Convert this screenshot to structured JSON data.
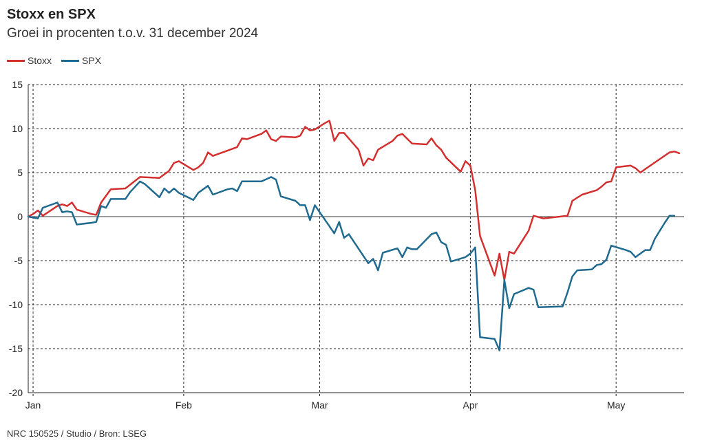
{
  "header": {
    "title": "Stoxx en SPX",
    "subtitle": "Groei in procenten t.o.v. 31 december 2024"
  },
  "footer": {
    "source": "NRC 150525 / Studio / Bron: LSEG"
  },
  "chart_data": {
    "type": "line",
    "title": "Stoxx en SPX",
    "subtitle": "Groei in procenten t.o.v. 31 december 2024",
    "xlabel": "",
    "ylabel": "",
    "ylim": [
      -20,
      15
    ],
    "yticks": [
      15,
      10,
      5,
      0,
      -5,
      -10,
      -15,
      -20
    ],
    "xlim": [
      -1,
      134
    ],
    "xticks": [
      {
        "label": "Jan",
        "x": 0
      },
      {
        "label": "Feb",
        "x": 31
      },
      {
        "label": "Mar",
        "x": 59
      },
      {
        "label": "Apr",
        "x": 90
      },
      {
        "label": "May",
        "x": 120
      }
    ],
    "grid": true,
    "legend_position": "top-left",
    "series": [
      {
        "name": "Stoxx",
        "color": "#d32f2f",
        "points": [
          [
            -1,
            0
          ],
          [
            0,
            0.3
          ],
          [
            1,
            0.7
          ],
          [
            2,
            0.1
          ],
          [
            5,
            1.2
          ],
          [
            6,
            1.4
          ],
          [
            7,
            1.2
          ],
          [
            8,
            1.6
          ],
          [
            9,
            0.8
          ],
          [
            12,
            0.3
          ],
          [
            13,
            0.2
          ],
          [
            14,
            1.6
          ],
          [
            16,
            3.1
          ],
          [
            19,
            3.2
          ],
          [
            22,
            4.5
          ],
          [
            26,
            4.4
          ],
          [
            28,
            5.2
          ],
          [
            29,
            6.1
          ],
          [
            30,
            6.3
          ],
          [
            33,
            5.3
          ],
          [
            34,
            5.6
          ],
          [
            35,
            6.1
          ],
          [
            36,
            7.3
          ],
          [
            37,
            6.9
          ],
          [
            42,
            7.9
          ],
          [
            43,
            8.9
          ],
          [
            44,
            8.8
          ],
          [
            47,
            9.4
          ],
          [
            48,
            9.8
          ],
          [
            49,
            8.8
          ],
          [
            50,
            8.6
          ],
          [
            51,
            9.1
          ],
          [
            54,
            9.0
          ],
          [
            55,
            9.2
          ],
          [
            56,
            10.2
          ],
          [
            57,
            9.8
          ],
          [
            58,
            9.9
          ],
          [
            60,
            10.6
          ],
          [
            61,
            10.9
          ],
          [
            62,
            8.6
          ],
          [
            63,
            9.5
          ],
          [
            64,
            9.5
          ],
          [
            67,
            7.6
          ],
          [
            68,
            5.8
          ],
          [
            69,
            6.6
          ],
          [
            70,
            6.4
          ],
          [
            71,
            7.6
          ],
          [
            74,
            8.6
          ],
          [
            75,
            9.2
          ],
          [
            76,
            9.4
          ],
          [
            78,
            8.3
          ],
          [
            81,
            8.2
          ],
          [
            82,
            8.9
          ],
          [
            83,
            8.1
          ],
          [
            84,
            7.6
          ],
          [
            85,
            6.7
          ],
          [
            88,
            5.1
          ],
          [
            89,
            6.3
          ],
          [
            90,
            5.8
          ],
          [
            91,
            3.0
          ],
          [
            92,
            -2.2
          ],
          [
            95,
            -6.7
          ],
          [
            96,
            -4.2
          ],
          [
            97,
            -7.2
          ],
          [
            98,
            -4.0
          ],
          [
            99,
            -4.2
          ],
          [
            102,
            -1.6
          ],
          [
            103,
            0.1
          ],
          [
            105,
            -0.2
          ],
          [
            110,
            0.1
          ],
          [
            111,
            1.8
          ],
          [
            113,
            2.5
          ],
          [
            116,
            3.0
          ],
          [
            117,
            3.4
          ],
          [
            118,
            3.9
          ],
          [
            119,
            4.0
          ],
          [
            120,
            5.6
          ],
          [
            123,
            5.8
          ],
          [
            124,
            5.5
          ],
          [
            125,
            5.0
          ],
          [
            126,
            5.4
          ],
          [
            131,
            7.3
          ],
          [
            132,
            7.4
          ],
          [
            133,
            7.2
          ]
        ]
      },
      {
        "name": "SPX",
        "color": "#1f6a8f",
        "points": [
          [
            -1,
            0
          ],
          [
            1,
            -0.2
          ],
          [
            2,
            1.0
          ],
          [
            5,
            1.6
          ],
          [
            6,
            0.5
          ],
          [
            7,
            0.6
          ],
          [
            8,
            0.5
          ],
          [
            9,
            -0.9
          ],
          [
            12,
            -0.7
          ],
          [
            13,
            -0.6
          ],
          [
            14,
            1.2
          ],
          [
            15,
            1.0
          ],
          [
            16,
            2.0
          ],
          [
            19,
            2.0
          ],
          [
            20,
            2.8
          ],
          [
            22,
            4.0
          ],
          [
            23,
            3.7
          ],
          [
            26,
            2.2
          ],
          [
            27,
            3.2
          ],
          [
            28,
            2.7
          ],
          [
            29,
            3.2
          ],
          [
            30,
            2.7
          ],
          [
            33,
            1.9
          ],
          [
            34,
            2.7
          ],
          [
            36,
            3.5
          ],
          [
            37,
            2.5
          ],
          [
            40,
            3.1
          ],
          [
            41,
            3.2
          ],
          [
            42,
            2.9
          ],
          [
            43,
            4.0
          ],
          [
            47,
            4.0
          ],
          [
            49,
            4.5
          ],
          [
            50,
            4.2
          ],
          [
            51,
            2.3
          ],
          [
            54,
            1.8
          ],
          [
            55,
            1.3
          ],
          [
            56,
            1.3
          ],
          [
            57,
            -0.4
          ],
          [
            58,
            1.3
          ],
          [
            61,
            -1.1
          ],
          [
            62,
            -1.9
          ],
          [
            63,
            -0.6
          ],
          [
            64,
            -2.4
          ],
          [
            65,
            -2.0
          ],
          [
            69,
            -5.3
          ],
          [
            70,
            -4.8
          ],
          [
            71,
            -6.1
          ],
          [
            72,
            -4.1
          ],
          [
            75,
            -3.6
          ],
          [
            76,
            -4.6
          ],
          [
            77,
            -3.5
          ],
          [
            78,
            -3.7
          ],
          [
            79,
            -3.7
          ],
          [
            82,
            -2.0
          ],
          [
            83,
            -1.8
          ],
          [
            84,
            -2.9
          ],
          [
            85,
            -3.2
          ],
          [
            86,
            -5.1
          ],
          [
            89,
            -4.6
          ],
          [
            90,
            -4.2
          ],
          [
            91,
            -3.5
          ],
          [
            92,
            -13.7
          ],
          [
            95,
            -13.9
          ],
          [
            96,
            -15.2
          ],
          [
            97,
            -7.2
          ],
          [
            98,
            -10.4
          ],
          [
            99,
            -8.8
          ],
          [
            102,
            -8.1
          ],
          [
            103,
            -8.3
          ],
          [
            104,
            -10.3
          ],
          [
            109,
            -10.2
          ],
          [
            110,
            -8.6
          ],
          [
            111,
            -6.8
          ],
          [
            112,
            -6.1
          ],
          [
            115,
            -6.0
          ],
          [
            116,
            -5.5
          ],
          [
            117,
            -5.4
          ],
          [
            118,
            -4.9
          ],
          [
            119,
            -3.3
          ],
          [
            122,
            -3.8
          ],
          [
            123,
            -4.0
          ],
          [
            124,
            -4.6
          ],
          [
            126,
            -3.8
          ],
          [
            127,
            -3.8
          ],
          [
            128,
            -2.5
          ],
          [
            130,
            -0.7
          ],
          [
            131,
            0.1
          ],
          [
            132,
            0.1
          ]
        ]
      }
    ]
  }
}
